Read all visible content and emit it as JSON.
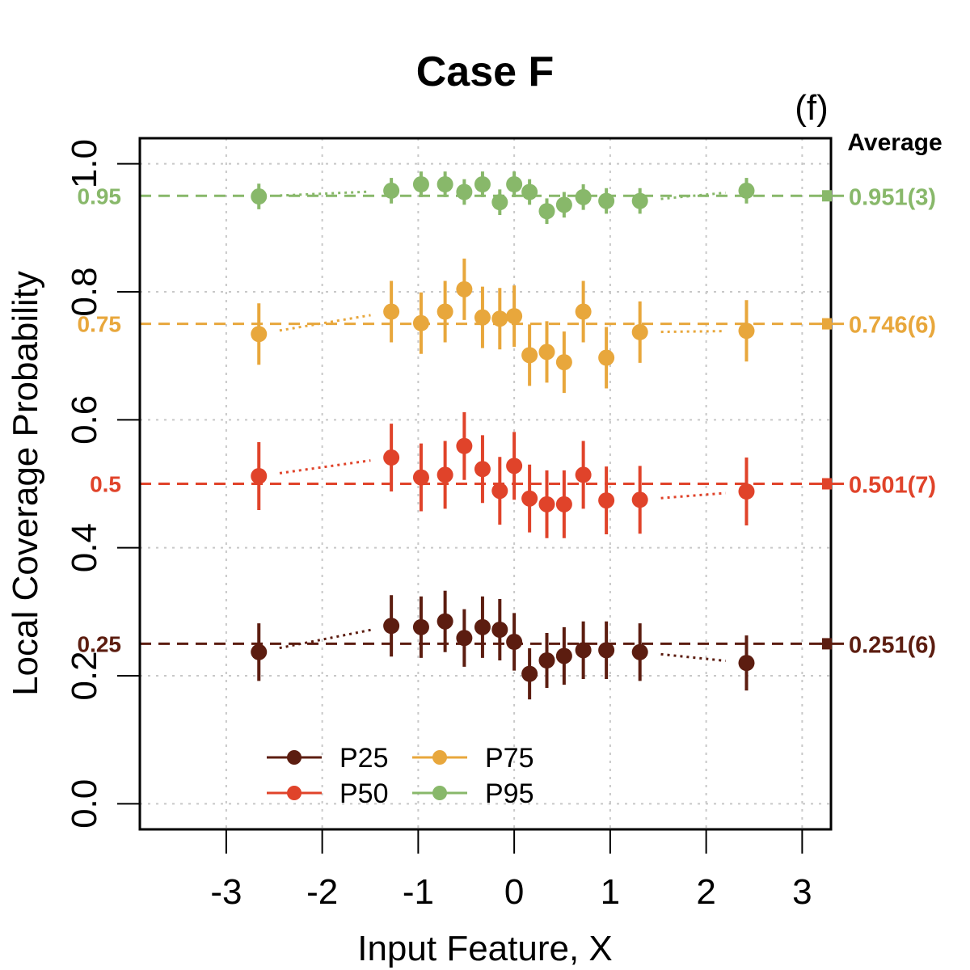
{
  "chart_data": {
    "type": "scatter",
    "title": "Case F",
    "panel_label": "(f)",
    "xlabel": "Input Feature, X",
    "ylabel": "Local Coverage Probability",
    "xlim": [
      -3.9,
      3.3
    ],
    "ylim": [
      -0.04,
      1.04
    ],
    "x_ticks": [
      -3,
      -2,
      -1,
      0,
      1,
      2,
      3
    ],
    "x_tick_labels": [
      "-3",
      "-2",
      "-1",
      "0",
      "1",
      "2",
      "3"
    ],
    "y_ticks": [
      0.0,
      0.2,
      0.4,
      0.6,
      0.8,
      1.0
    ],
    "y_tick_labels": [
      "0.0",
      "0.2",
      "0.4",
      "0.6",
      "0.8",
      "1.0"
    ],
    "grid": true,
    "average_header": "Average",
    "legend": {
      "placement": "bottom-left",
      "columns": 2
    },
    "x": [
      -2.66,
      -1.28,
      -0.97,
      -0.72,
      -0.52,
      -0.33,
      -0.15,
      0.0,
      0.16,
      0.34,
      0.52,
      0.72,
      0.96,
      1.31,
      2.42
    ],
    "series": [
      {
        "name": "P25",
        "color": "#5c1d10",
        "nominal": 0.25,
        "nominal_label": "0.25",
        "average_label": "0.251(6)",
        "values": [
          0.237,
          0.278,
          0.276,
          0.285,
          0.259,
          0.276,
          0.272,
          0.253,
          0.203,
          0.224,
          0.231,
          0.24,
          0.24,
          0.237,
          0.22
        ],
        "errors": [
          0.045,
          0.048,
          0.048,
          0.048,
          0.045,
          0.048,
          0.048,
          0.045,
          0.04,
          0.043,
          0.045,
          0.045,
          0.045,
          0.045,
          0.043
        ],
        "connect": [
          [
            0,
            1
          ],
          [
            13,
            14
          ]
        ]
      },
      {
        "name": "P50",
        "color": "#e0432a",
        "nominal": 0.5,
        "nominal_label": "0.5",
        "average_label": "0.501(7)",
        "values": [
          0.512,
          0.541,
          0.51,
          0.514,
          0.559,
          0.523,
          0.489,
          0.528,
          0.477,
          0.468,
          0.468,
          0.514,
          0.474,
          0.475,
          0.488
        ],
        "errors": [
          0.053,
          0.053,
          0.053,
          0.053,
          0.053,
          0.053,
          0.053,
          0.053,
          0.053,
          0.053,
          0.053,
          0.053,
          0.053,
          0.053,
          0.053
        ],
        "connect": [
          [
            0,
            1
          ],
          [
            13,
            14
          ]
        ]
      },
      {
        "name": "P75",
        "color": "#e8a73c",
        "nominal": 0.75,
        "nominal_label": "0.75",
        "average_label": "0.746(6)",
        "values": [
          0.734,
          0.769,
          0.751,
          0.769,
          0.804,
          0.76,
          0.758,
          0.762,
          0.701,
          0.706,
          0.69,
          0.769,
          0.697,
          0.737,
          0.739
        ],
        "errors": [
          0.048,
          0.048,
          0.048,
          0.048,
          0.048,
          0.048,
          0.048,
          0.048,
          0.048,
          0.048,
          0.048,
          0.048,
          0.048,
          0.048,
          0.048
        ],
        "connect": [
          [
            0,
            1
          ],
          [
            13,
            14
          ]
        ]
      },
      {
        "name": "P95",
        "color": "#88b86a",
        "nominal": 0.95,
        "nominal_label": "0.95",
        "average_label": "0.951(3)",
        "values": [
          0.949,
          0.958,
          0.968,
          0.968,
          0.956,
          0.968,
          0.94,
          0.968,
          0.956,
          0.926,
          0.936,
          0.948,
          0.942,
          0.942,
          0.958
        ],
        "errors": [
          0.02,
          0.02,
          0.02,
          0.02,
          0.02,
          0.02,
          0.02,
          0.02,
          0.02,
          0.02,
          0.02,
          0.02,
          0.02,
          0.02,
          0.02
        ],
        "connect": [
          [
            0,
            1
          ],
          [
            13,
            14
          ]
        ]
      }
    ]
  }
}
